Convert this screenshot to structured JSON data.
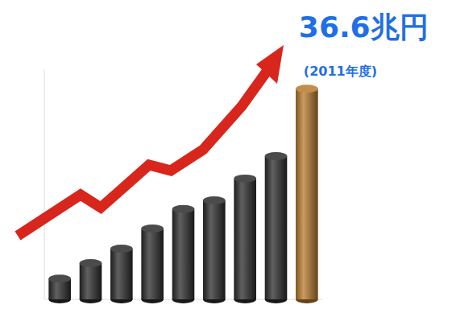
{
  "chart_data": {
    "type": "bar",
    "annotation": "(2011年度)",
    "categories": [
      null,
      null,
      null,
      null,
      null,
      null,
      null,
      null,
      null
    ],
    "values": [
      3.6,
      6.3,
      8.8,
      12.3,
      15.7,
      17.2,
      21.0,
      24.9,
      36.6
    ],
    "value_labels": [
      null,
      null,
      null,
      null,
      null,
      null,
      null,
      null,
      "36.6兆円"
    ],
    "data_labels": true,
    "colors": [
      "#2b2b2b",
      "#2b2b2b",
      "#2b2b2b",
      "#2b2b2b",
      "#2b2b2b",
      "#2b2b2b",
      "#2b2b2b",
      "#2b2b2b",
      "#b87a2e"
    ],
    "ylim": [
      0,
      40
    ],
    "tick_labels": false,
    "grid": false
  }
}
